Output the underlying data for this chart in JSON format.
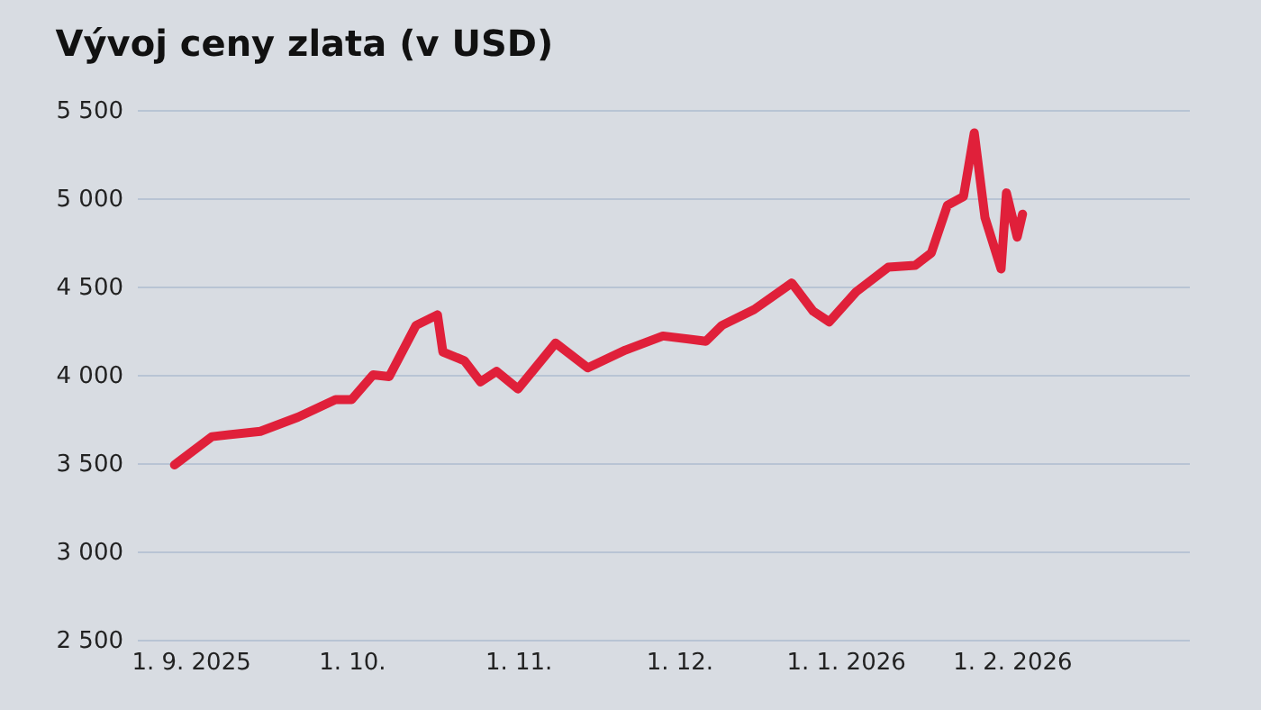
{
  "chart_data": {
    "type": "line",
    "title": "Vývoj ceny zlata (v USD)",
    "x": [
      "2025-08-29",
      "2025-09-05",
      "2025-09-14",
      "2025-09-21",
      "2025-09-28",
      "2025-10-01",
      "2025-10-05",
      "2025-10-08",
      "2025-10-13",
      "2025-10-17",
      "2025-10-18",
      "2025-10-22",
      "2025-10-25",
      "2025-10-28",
      "2025-11-01",
      "2025-11-08",
      "2025-11-14",
      "2025-11-21",
      "2025-11-28",
      "2025-12-06",
      "2025-12-09",
      "2025-12-15",
      "2025-12-22",
      "2025-12-26",
      "2025-12-29",
      "2026-01-03",
      "2026-01-09",
      "2026-01-14",
      "2026-01-17",
      "2026-01-20",
      "2026-01-23",
      "2026-01-25",
      "2026-01-27",
      "2026-01-30",
      "2026-01-31",
      "2026-02-02",
      "2026-02-03"
    ],
    "series": [
      {
        "color": "#e0203a",
        "values": [
          3490,
          3650,
          3680,
          3760,
          3860,
          3860,
          4000,
          3990,
          4280,
          4340,
          4130,
          4080,
          3960,
          4020,
          3920,
          4180,
          4040,
          4140,
          4220,
          4190,
          4280,
          4370,
          4520,
          4360,
          4300,
          4470,
          4610,
          4620,
          4690,
          4960,
          5010,
          5370,
          4890,
          4600,
          5030,
          4780,
          4910
        ]
      }
    ],
    "xlim": [
      "2025-08-22",
      "2026-03-06"
    ],
    "ylim": [
      2500,
      5500
    ],
    "xticks": [
      {
        "value": "2025-09-01",
        "label": "1. 9. 2025"
      },
      {
        "value": "2025-10-01",
        "label": "1. 10."
      },
      {
        "value": "2025-11-01",
        "label": "1. 11."
      },
      {
        "value": "2025-12-01",
        "label": "1. 12."
      },
      {
        "value": "2026-01-01",
        "label": "1. 1. 2026"
      },
      {
        "value": "2026-02-01",
        "label": "1. 2. 2026"
      }
    ],
    "yticks": [
      {
        "value": 2500,
        "label": "2 500"
      },
      {
        "value": 3000,
        "label": "3 000"
      },
      {
        "value": 3500,
        "label": "3 500"
      },
      {
        "value": 4000,
        "label": "4 000"
      },
      {
        "value": 4500,
        "label": "4 500"
      },
      {
        "value": 5000,
        "label": "5 000"
      },
      {
        "value": 5500,
        "label": "5 500"
      }
    ],
    "grid": "y",
    "line_style": "solid",
    "marker": "none"
  }
}
